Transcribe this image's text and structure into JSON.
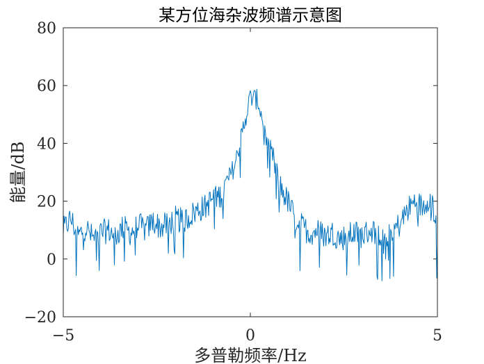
{
  "chart_data": {
    "type": "line",
    "title": "某方位海杂波频谱示意图",
    "xlabel": "多普勒频率/Hz",
    "ylabel": "能量/dB",
    "xlim": [
      -5,
      5
    ],
    "ylim": [
      -20,
      80
    ],
    "xticks": [
      -5,
      0,
      5
    ],
    "yticks": [
      -20,
      0,
      20,
      40,
      60,
      80
    ],
    "xtick_labels": [
      "−5",
      "0",
      "5"
    ],
    "ytick_labels": [
      "−20",
      "0",
      "20",
      "40",
      "60",
      "80"
    ],
    "grid": false,
    "box": true,
    "line_color": "#0072BD",
    "series": [
      {
        "x": [
          -5.0,
          -4.8,
          -4.6,
          -4.4,
          -4.2,
          -4.0,
          -3.8,
          -3.6,
          -3.4,
          -3.2,
          -3.0,
          -2.8,
          -2.6,
          -2.4,
          -2.2,
          -2.0,
          -1.8,
          -1.6,
          -1.4,
          -1.2,
          -1.0,
          -0.8,
          -0.6,
          -0.4,
          -0.2,
          0.0,
          0.2,
          0.4,
          0.6,
          0.8,
          1.0,
          1.2,
          1.4,
          1.6,
          1.8,
          2.0,
          2.2,
          2.4,
          2.6,
          2.8,
          3.0,
          3.2,
          3.4,
          3.6,
          3.8,
          4.0,
          4.2,
          4.4,
          4.6,
          4.8,
          5.0
        ],
        "values": [
          10,
          14,
          8,
          11,
          7,
          9,
          10,
          8,
          11,
          9,
          12,
          10,
          13,
          11,
          12,
          14,
          13,
          15,
          17,
          18,
          21,
          22,
          27,
          33,
          45,
          56,
          55,
          44,
          35,
          25,
          20,
          14,
          11,
          9,
          10,
          8,
          9,
          7,
          8,
          9,
          8,
          10,
          9,
          8,
          10,
          12,
          17,
          20,
          18,
          22,
          12
        ]
      }
    ]
  }
}
